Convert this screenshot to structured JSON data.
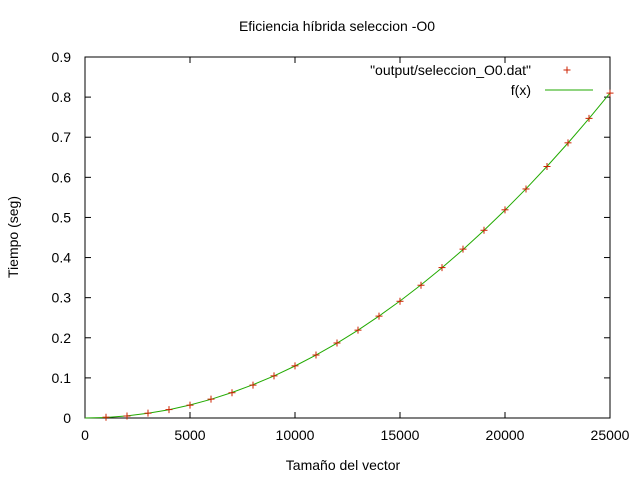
{
  "chart_data": {
    "type": "scatter",
    "title": "Eficiencia híbrida seleccion -O0",
    "xlabel": "Tamaño del vector",
    "ylabel": "Tiempo (seg)",
    "xlim": [
      0,
      25000
    ],
    "ylim": [
      0,
      0.9
    ],
    "x_ticks": [
      0,
      5000,
      10000,
      15000,
      20000,
      25000
    ],
    "x_tick_labels": [
      "0",
      "5000",
      "10000",
      "15000",
      "20000",
      "25000"
    ],
    "y_ticks": [
      0,
      0.1,
      0.2,
      0.3,
      0.4,
      0.5,
      0.6,
      0.7,
      0.8,
      0.9
    ],
    "y_tick_labels": [
      "0",
      "0.1",
      "0.2",
      "0.3",
      "0.4",
      "0.5",
      "0.6",
      "0.7",
      "0.8",
      "0.9"
    ],
    "grid": false,
    "legend_position": "top-right",
    "series": [
      {
        "name": "\"output/seleccion_O0.dat\"",
        "kind": "points",
        "marker": "plus",
        "color": "#cc2200",
        "x": [
          1000,
          2000,
          3000,
          4000,
          5000,
          6000,
          7000,
          8000,
          9000,
          10000,
          11000,
          12000,
          13000,
          14000,
          15000,
          16000,
          17000,
          18000,
          19000,
          20000,
          21000,
          22000,
          23000,
          24000,
          25000
        ],
        "y": [
          0.002,
          0.005,
          0.012,
          0.021,
          0.032,
          0.047,
          0.063,
          0.082,
          0.105,
          0.13,
          0.157,
          0.187,
          0.219,
          0.254,
          0.291,
          0.331,
          0.375,
          0.421,
          0.468,
          0.519,
          0.571,
          0.627,
          0.686,
          0.747,
          0.81
        ]
      },
      {
        "name": "f(x)",
        "kind": "line",
        "color": "#22aa00",
        "x": [
          1000,
          2000,
          3000,
          4000,
          5000,
          6000,
          7000,
          8000,
          9000,
          10000,
          11000,
          12000,
          13000,
          14000,
          15000,
          16000,
          17000,
          18000,
          19000,
          20000,
          21000,
          22000,
          23000,
          24000,
          25000
        ],
        "y": [
          0.0013,
          0.0052,
          0.0117,
          0.0207,
          0.0324,
          0.0467,
          0.0635,
          0.0829,
          0.105,
          0.1296,
          0.1568,
          0.1866,
          0.219,
          0.254,
          0.2916,
          0.3318,
          0.3745,
          0.4199,
          0.4678,
          0.5184,
          0.5715,
          0.6272,
          0.6855,
          0.7464,
          0.81
        ]
      }
    ]
  }
}
